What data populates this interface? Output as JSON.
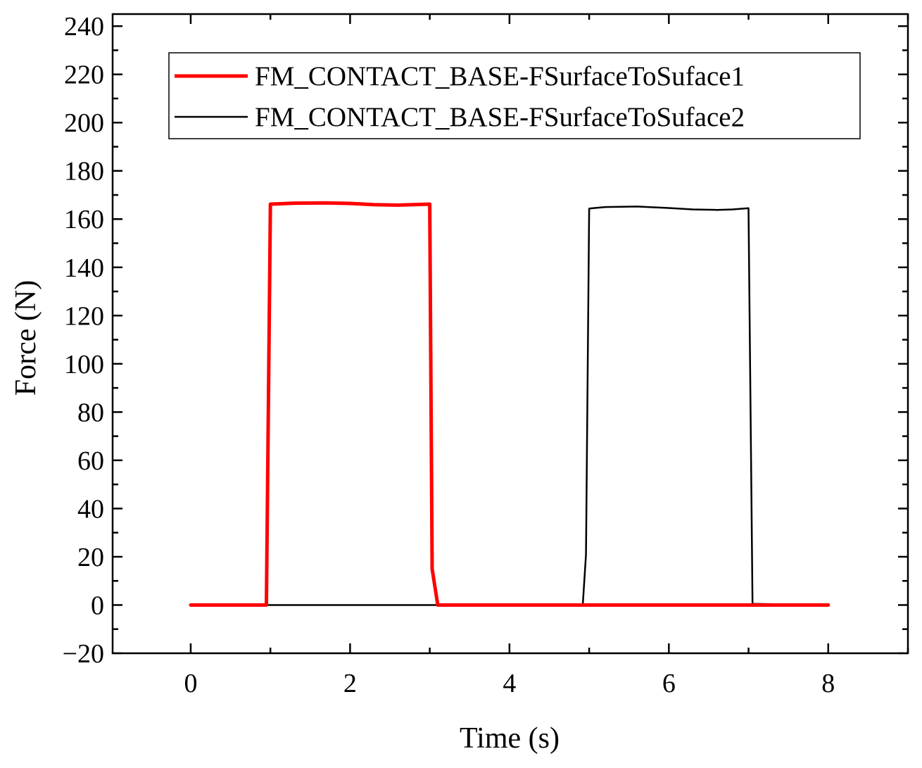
{
  "chart_data": {
    "type": "line",
    "title": "",
    "xlabel": "Time (s)",
    "ylabel": "Force (N)",
    "xlim": [
      -0.98,
      9.0
    ],
    "ylim": [
      -20,
      245
    ],
    "xticks": [
      0,
      2,
      4,
      6,
      8
    ],
    "yticks": [
      -20,
      0,
      20,
      40,
      60,
      80,
      100,
      120,
      140,
      160,
      180,
      200,
      220,
      240
    ],
    "xtick_labels": [
      "0",
      "2",
      "4",
      "6",
      "8"
    ],
    "ytick_labels": [
      "−20",
      "0",
      "20",
      "40",
      "60",
      "80",
      "100",
      "120",
      "140",
      "160",
      "180",
      "200",
      "220",
      "240"
    ],
    "grid": false,
    "legend_position": "top-right",
    "series": [
      {
        "name": "FM_CONTACT_BASE-FSurfaceToSuface1",
        "color": "#ff0000",
        "line_width": "thick",
        "x": [
          0,
          0.95,
          1.0,
          1.3,
          1.7,
          2.0,
          2.3,
          2.6,
          3.0,
          3.03,
          3.1,
          4.0,
          5.0,
          6.0,
          7.0,
          8.0
        ],
        "y": [
          0,
          0,
          166.2,
          166.6,
          166.7,
          166.5,
          166.0,
          165.8,
          166.2,
          15,
          0,
          0,
          0,
          0,
          0,
          0
        ]
      },
      {
        "name": "FM_CONTACT_BASE-FSurfaceToSuface2",
        "color": "#000000",
        "line_width": "thin",
        "x": [
          0,
          1.0,
          2.0,
          3.0,
          4.0,
          4.92,
          4.96,
          5.0,
          5.2,
          5.6,
          6.0,
          6.3,
          6.6,
          6.8,
          7.0,
          7.05,
          8.0
        ],
        "y": [
          0,
          0,
          0,
          0,
          0,
          0,
          21,
          164.4,
          165.0,
          165.2,
          164.6,
          164.0,
          163.8,
          164.0,
          164.5,
          0.5,
          0
        ]
      }
    ]
  }
}
